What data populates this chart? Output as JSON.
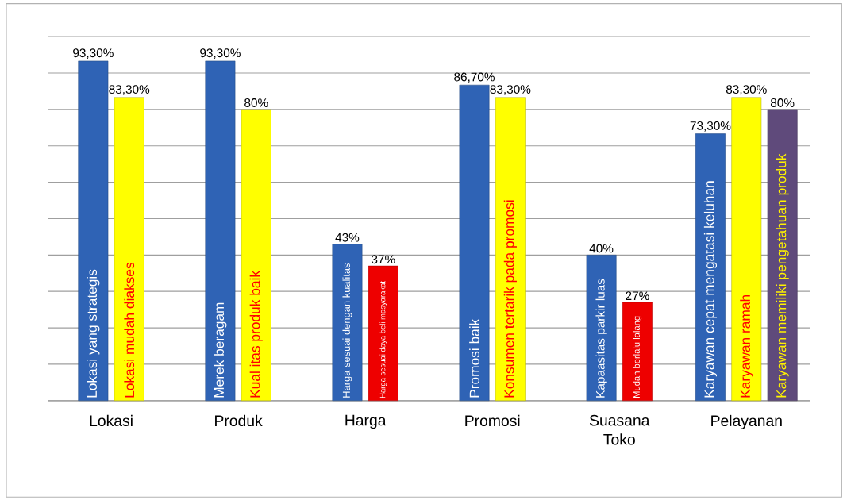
{
  "chart_data": {
    "type": "bar",
    "categories": [
      "Lokasi",
      "Produk",
      "Harga",
      "Promosi",
      "Suasana Toko",
      "Pelayanan"
    ],
    "series": [
      {
        "color": "#2f63b5",
        "values": [
          93.3,
          93.3,
          43,
          86.7,
          40,
          73.3
        ],
        "value_labels": [
          "93,30%",
          "93,30%",
          "43%",
          "86,70%",
          "40%",
          "73,30%"
        ]
      },
      {
        "colors": [
          "#ffff00",
          "#ffff00",
          "#ee0000",
          "#ffff00",
          "#ee0000",
          "#ffff00"
        ],
        "values": [
          83.3,
          80,
          37,
          83.3,
          27,
          83.3
        ],
        "value_labels": [
          "83,30%",
          "80%",
          "37%",
          "83,30%",
          "27%",
          "83,30%"
        ]
      },
      {
        "color": "#5f4a7b",
        "values": [
          null,
          null,
          null,
          null,
          null,
          80
        ],
        "value_labels": [
          null,
          null,
          null,
          null,
          null,
          "80%"
        ]
      }
    ],
    "grid": "y",
    "tick_labels": "x",
    "annotations": [
      {
        "text": "Lokasi yang strategis",
        "x": "Lokasi",
        "y": 0
      },
      {
        "text": "Lokasi mudah diakses",
        "x": "Lokasi",
        "y": 0
      },
      {
        "text": "Merek beragam",
        "x": "Produk",
        "y": 0
      },
      {
        "text": "Kual itas produk baik",
        "x": "Produk",
        "y": 0
      },
      {
        "text": "Harga sesuai dengan kualitas",
        "x": "Harga",
        "y": 0
      },
      {
        "text": "Harga sesuai daya beli masyarakat",
        "x": "Harga",
        "y": 0
      },
      {
        "text": "Promosi baik",
        "x": "Promosi",
        "y": 0
      },
      {
        "text": "Konsumen tertarik pada promosi",
        "x": "Promosi",
        "y": 0
      },
      {
        "text": "Kapaasitas parkir luas",
        "x": "Suasana Toko",
        "y": 0
      },
      {
        "text": "Mudah berlalu lalang",
        "x": "Suasana Toko",
        "y": 0
      },
      {
        "text": "Karyawan cepat mengatasi keluhan",
        "x": "Pelayanan",
        "y": 0
      },
      {
        "text": "Karyawan ramah",
        "x": "Pelayanan",
        "y": 0
      },
      {
        "text": "Karyawan memiliki pengetahuan produk",
        "x": "Pelayanan",
        "y": 0
      }
    ]
  }
}
